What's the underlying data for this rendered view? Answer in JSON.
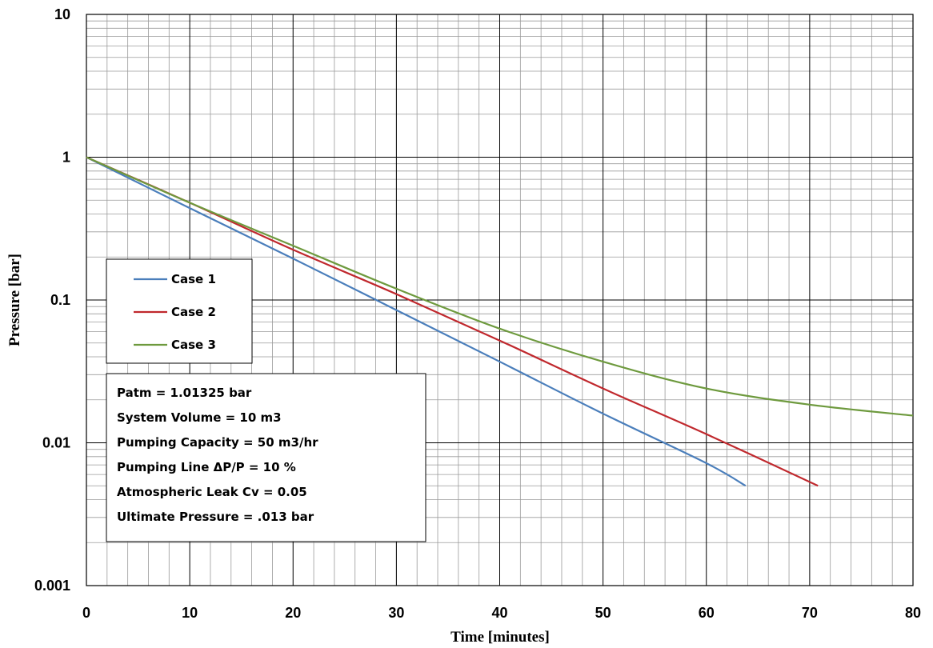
{
  "chart_data": {
    "type": "line",
    "title": "",
    "xlabel": "Time [minutes]",
    "ylabel": "Pressure [bar]",
    "xlim": [
      0,
      80
    ],
    "ylim": [
      0.001,
      10
    ],
    "y_scale": "log",
    "grid": true,
    "x_ticks": [
      "0",
      "10",
      "20",
      "30",
      "40",
      "50",
      "60",
      "70",
      "80"
    ],
    "y_ticks": [
      "0.001",
      "0.01",
      "0.1",
      "1",
      "10"
    ],
    "legend": {
      "placement": "left"
    },
    "series": [
      {
        "name": "Case 1",
        "color": "#4a7ebb",
        "x": [
          0,
          10,
          20,
          30,
          40,
          50,
          60,
          63.8
        ],
        "y": [
          1,
          0.44,
          0.195,
          0.085,
          0.037,
          0.016,
          0.0072,
          0.005
        ]
      },
      {
        "name": "Case 2",
        "color": "#c0282d",
        "x": [
          0,
          10,
          20,
          30,
          40,
          50,
          60,
          70.8
        ],
        "y": [
          1,
          0.48,
          0.225,
          0.11,
          0.052,
          0.024,
          0.0115,
          0.005
        ]
      },
      {
        "name": "Case 3",
        "color": "#6e9a3e",
        "x": [
          0,
          10,
          20,
          30,
          40,
          50,
          60,
          70,
          80
        ],
        "y": [
          1,
          0.48,
          0.24,
          0.12,
          0.063,
          0.037,
          0.024,
          0.0185,
          0.0155
        ]
      }
    ],
    "annotation_lines": [
      "Patm = 1.01325 bar",
      "System Volume = 10 m3",
      "Pumping Capacity = 50 m3/hr",
      "Pumping Line ΔP/P = 10 %",
      "Atmospheric Leak Cv = 0.05",
      "Ultimate Pressure = .013 bar"
    ]
  }
}
